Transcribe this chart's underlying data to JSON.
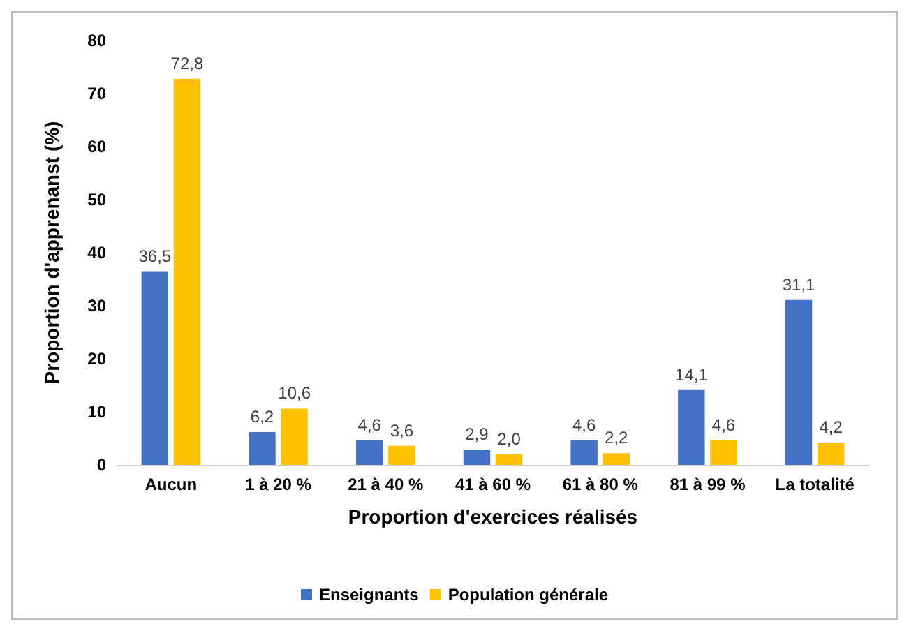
{
  "chart_data": {
    "type": "bar",
    "xlabel": "Proportion d'exercices réalisés",
    "ylabel": "Proportion d'apprenanst (%)",
    "categories": [
      "Aucun",
      "1 à 20 %",
      "21 à 40 %",
      "41 à 60 %",
      "61 à 80 %",
      "81 à 99 %",
      "La totalité"
    ],
    "series": [
      {
        "name": "Enseignants",
        "color": "#4472c4",
        "values": [
          36.5,
          6.2,
          4.6,
          2.9,
          4.6,
          14.1,
          31.1
        ],
        "value_labels": [
          "36,5",
          "6,2",
          "4,6",
          "2,9",
          "4,6",
          "14,1",
          "31,1"
        ]
      },
      {
        "name": "Population générale",
        "color": "#ffc000",
        "values": [
          72.8,
          10.6,
          3.6,
          2.0,
          2.2,
          4.6,
          4.2
        ],
        "value_labels": [
          "72,8",
          "10,6",
          "3,6",
          "2,0",
          "2,2",
          "4,6",
          "4,2"
        ]
      }
    ],
    "ylim": [
      0,
      80
    ],
    "yticks": [
      0,
      10,
      20,
      30,
      40,
      50,
      60,
      70,
      80
    ],
    "grid": false,
    "legend": "bottom"
  }
}
